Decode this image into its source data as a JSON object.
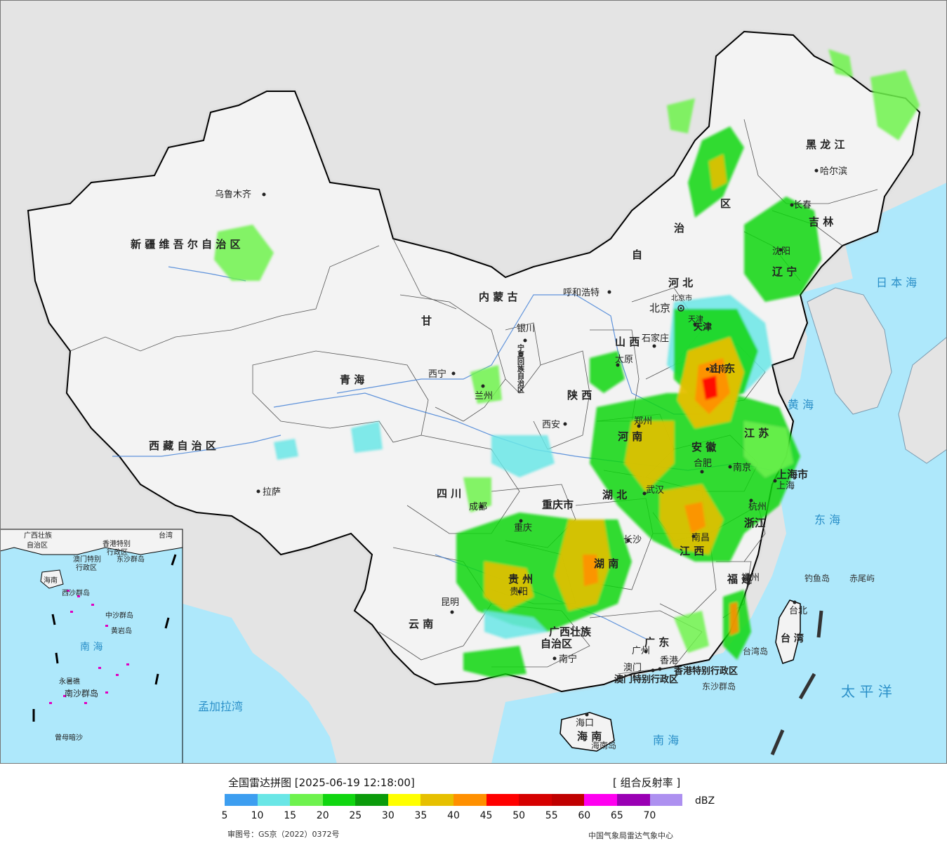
{
  "map": {
    "sea_color": "#aee8fb",
    "land_color": "#f3f3f3",
    "foreign_land_color": "#e4e4e4",
    "provinces": [
      {
        "id": "xinjiang",
        "text": "新 疆 维 吾 尔 自 治 区"
      },
      {
        "id": "xizang",
        "text": "西 藏 自 治 区"
      },
      {
        "id": "qinghai",
        "text": "青          海"
      },
      {
        "id": "gansu",
        "text": "甘"
      },
      {
        "id": "neimenggu",
        "text": "内      蒙      古"
      },
      {
        "id": "neimenggu2",
        "text": "自"
      },
      {
        "id": "neimenggu3",
        "text": "治"
      },
      {
        "id": "neimenggu4",
        "text": "区"
      },
      {
        "id": "heilongjiang",
        "text": "黑    龙    江"
      },
      {
        "id": "jilin",
        "text": "吉    林"
      },
      {
        "id": "liaoning",
        "text": "辽    宁"
      },
      {
        "id": "hebei",
        "text": "河  北"
      },
      {
        "id": "tianjin",
        "text": "天津"
      },
      {
        "id": "shanxi",
        "text": "山  西"
      },
      {
        "id": "shaanxi",
        "text": "陕  西"
      },
      {
        "id": "shandong",
        "text": "山  东"
      },
      {
        "id": "henan",
        "text": "河  南"
      },
      {
        "id": "jiangsu",
        "text": "江  苏"
      },
      {
        "id": "anhui",
        "text": "安  徽"
      },
      {
        "id": "shanghai",
        "text": "上海市"
      },
      {
        "id": "zhejiang",
        "text": "浙江"
      },
      {
        "id": "hubei",
        "text": "湖      北"
      },
      {
        "id": "chongqing",
        "text": "重庆市"
      },
      {
        "id": "sichuan",
        "text": "四    川"
      },
      {
        "id": "guizhou",
        "text": "贵  州"
      },
      {
        "id": "hunan",
        "text": "湖    南"
      },
      {
        "id": "jiangxi",
        "text": "江    西"
      },
      {
        "id": "fujian",
        "text": "福  建"
      },
      {
        "id": "yunnan",
        "text": "云      南"
      },
      {
        "id": "guangxi",
        "text": "广西壮族"
      },
      {
        "id": "guangxi2",
        "text": "自治区"
      },
      {
        "id": "guangdong",
        "text": "广  东"
      },
      {
        "id": "hainan",
        "text": "海  南"
      },
      {
        "id": "taiwan",
        "text": "台  湾"
      },
      {
        "id": "ningxia",
        "text": "宁夏回族自治区"
      },
      {
        "id": "xianggang",
        "text": "香港特别行政区"
      },
      {
        "id": "aomen",
        "text": "澳门特别行政区"
      }
    ],
    "cities": [
      {
        "id": "urumqi",
        "text": "乌鲁木齐"
      },
      {
        "id": "lhasa",
        "text": "拉萨"
      },
      {
        "id": "xining",
        "text": "西宁"
      },
      {
        "id": "lanzhou",
        "text": "兰州"
      },
      {
        "id": "yinchuan",
        "text": "银川"
      },
      {
        "id": "hohhot",
        "text": "呼和浩特"
      },
      {
        "id": "beijing",
        "text": "北京"
      },
      {
        "id": "beijing_shi",
        "text": "北京市"
      },
      {
        "id": "tianjin_city",
        "text": "天津"
      },
      {
        "id": "shijiazhuang",
        "text": "石家庄"
      },
      {
        "id": "taiyuan",
        "text": "太原"
      },
      {
        "id": "xian",
        "text": "西安"
      },
      {
        "id": "zhengzhou",
        "text": "郑州"
      },
      {
        "id": "jinan",
        "text": "济南"
      },
      {
        "id": "nanjing",
        "text": "南京"
      },
      {
        "id": "hefei",
        "text": "合肥"
      },
      {
        "id": "shanghai_city",
        "text": "上海"
      },
      {
        "id": "hangzhou",
        "text": "杭州"
      },
      {
        "id": "wuhan",
        "text": "武汉"
      },
      {
        "id": "changsha",
        "text": "长沙"
      },
      {
        "id": "nanchang",
        "text": "南昌"
      },
      {
        "id": "fuzhou",
        "text": "福州"
      },
      {
        "id": "chengdu",
        "text": "成都"
      },
      {
        "id": "chongqing_city",
        "text": "重庆"
      },
      {
        "id": "guiyang",
        "text": "贵阳"
      },
      {
        "id": "kunming",
        "text": "昆明"
      },
      {
        "id": "nanning",
        "text": "南宁"
      },
      {
        "id": "guangzhou",
        "text": "广州"
      },
      {
        "id": "hongkong",
        "text": "香港"
      },
      {
        "id": "macao",
        "text": "澳门"
      },
      {
        "id": "haikou",
        "text": "海口"
      },
      {
        "id": "taibei",
        "text": "台北"
      },
      {
        "id": "harbin",
        "text": "哈尔滨"
      },
      {
        "id": "changchun",
        "text": "长春"
      },
      {
        "id": "shenyang",
        "text": "沈阳"
      }
    ],
    "seas": [
      {
        "id": "riben",
        "text": "日 本 海"
      },
      {
        "id": "huanghai",
        "text": "黄 海"
      },
      {
        "id": "donghai",
        "text": "东 海"
      },
      {
        "id": "taipingyang",
        "text": "太  平  洋"
      },
      {
        "id": "nanhai",
        "text": "南    海"
      },
      {
        "id": "mengjiala",
        "text": "孟加拉湾"
      }
    ],
    "islands": [
      {
        "id": "diaoyu",
        "text": "钓鱼岛"
      },
      {
        "id": "chiwei",
        "text": "赤尾屿"
      },
      {
        "id": "taiwan_island",
        "text": "台湾岛"
      },
      {
        "id": "hainan_island",
        "text": "海南岛"
      },
      {
        "id": "dongsha",
        "text": "东沙群岛"
      }
    ],
    "inset": {
      "labels": [
        {
          "id": "i_guangxi",
          "text": "广西壮族"
        },
        {
          "id": "i_zizhiqu",
          "text": "自治区"
        },
        {
          "id": "i_taiwan",
          "text": "台湾"
        },
        {
          "id": "i_xianggang",
          "text": "香港特别"
        },
        {
          "id": "i_xingzhengqu",
          "text": "行政区"
        },
        {
          "id": "i_aomen",
          "text": "澳门特别"
        },
        {
          "id": "i_xingzhengqu2",
          "text": "行政区"
        },
        {
          "id": "i_dongsha",
          "text": "东沙群岛"
        },
        {
          "id": "i_hainan",
          "text": "海南"
        },
        {
          "id": "i_xisha",
          "text": "西沙群岛"
        },
        {
          "id": "i_zhongsha",
          "text": "中沙群岛"
        },
        {
          "id": "i_huangyan",
          "text": "黄岩岛"
        },
        {
          "id": "i_nanhai",
          "text": "南   海"
        },
        {
          "id": "i_yongshu",
          "text": "永暑礁"
        },
        {
          "id": "i_nansha",
          "text": "南沙群岛"
        },
        {
          "id": "i_zengmu",
          "text": "曾母暗沙"
        }
      ]
    }
  },
  "legend": {
    "title": "全国雷达拼图 [2025-06-19 12:18:00]",
    "product": "[ 组合反射率 ]",
    "unit": "dBZ",
    "colors": [
      "#3d9ef0",
      "#6ae6e6",
      "#6ef24e",
      "#10d610",
      "#0b9b0b",
      "#ffff00",
      "#e6c000",
      "#ff9000",
      "#ff0000",
      "#d60000",
      "#c00000",
      "#ff00f0",
      "#9a00b4",
      "#ad90f0"
    ],
    "ticks": [
      "5",
      "10",
      "15",
      "20",
      "25",
      "30",
      "35",
      "40",
      "45",
      "50",
      "55",
      "60",
      "65",
      "70"
    ],
    "review_no": "审图号：GS京（2022）0372号",
    "center": "中国气象局雷达气象中心"
  }
}
